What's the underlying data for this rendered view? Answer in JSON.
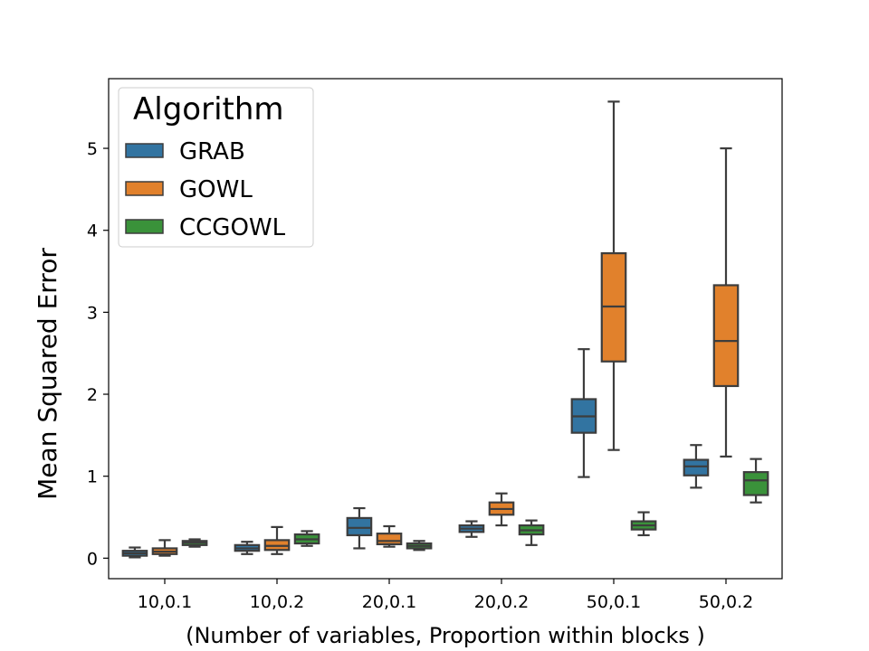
{
  "chart_data": {
    "type": "box",
    "xlabel": "(Number of variables, Proportion within blocks )",
    "ylabel": "Mean Squared Error",
    "ylim": [
      -0.25,
      5.85
    ],
    "yticks": [
      0,
      1,
      2,
      3,
      4,
      5
    ],
    "grid": false,
    "legend": {
      "title": "Algorithm",
      "placement": "top-left"
    },
    "categories": [
      "10,0.1",
      "10,0.2",
      "20,0.1",
      "20,0.2",
      "50,0.1",
      "50,0.2"
    ],
    "series": [
      {
        "name": "GRAB",
        "color": "#3274a1",
        "boxes": [
          {
            "whislo": 0.01,
            "q1": 0.03,
            "med": 0.06,
            "q3": 0.09,
            "whishi": 0.13
          },
          {
            "whislo": 0.05,
            "q1": 0.09,
            "med": 0.12,
            "q3": 0.16,
            "whishi": 0.2
          },
          {
            "whislo": 0.12,
            "q1": 0.28,
            "med": 0.37,
            "q3": 0.49,
            "whishi": 0.61
          },
          {
            "whislo": 0.26,
            "q1": 0.32,
            "med": 0.36,
            "q3": 0.4,
            "whishi": 0.45
          },
          {
            "whislo": 0.99,
            "q1": 1.53,
            "med": 1.73,
            "q3": 1.94,
            "whishi": 2.55
          },
          {
            "whislo": 0.86,
            "q1": 1.01,
            "med": 1.12,
            "q3": 1.2,
            "whishi": 1.38
          }
        ]
      },
      {
        "name": "GOWL",
        "color": "#e1812c",
        "boxes": [
          {
            "whislo": 0.03,
            "q1": 0.05,
            "med": 0.08,
            "q3": 0.12,
            "whishi": 0.22
          },
          {
            "whislo": 0.05,
            "q1": 0.1,
            "med": 0.15,
            "q3": 0.22,
            "whishi": 0.38
          },
          {
            "whislo": 0.14,
            "q1": 0.17,
            "med": 0.21,
            "q3": 0.3,
            "whishi": 0.39
          },
          {
            "whislo": 0.4,
            "q1": 0.53,
            "med": 0.6,
            "q3": 0.68,
            "whishi": 0.79
          },
          {
            "whislo": 1.32,
            "q1": 2.4,
            "med": 3.07,
            "q3": 3.72,
            "whishi": 5.57
          },
          {
            "whislo": 1.24,
            "q1": 2.1,
            "med": 2.65,
            "q3": 3.33,
            "whishi": 5.0
          }
        ]
      },
      {
        "name": "CCGOWL",
        "color": "#3a923a",
        "boxes": [
          {
            "whislo": 0.14,
            "q1": 0.16,
            "med": 0.19,
            "q3": 0.21,
            "whishi": 0.23
          },
          {
            "whislo": 0.15,
            "q1": 0.18,
            "med": 0.23,
            "q3": 0.29,
            "whishi": 0.33
          },
          {
            "whislo": 0.1,
            "q1": 0.12,
            "med": 0.15,
            "q3": 0.18,
            "whishi": 0.21
          },
          {
            "whislo": 0.16,
            "q1": 0.29,
            "med": 0.34,
            "q3": 0.4,
            "whishi": 0.46
          },
          {
            "whislo": 0.28,
            "q1": 0.35,
            "med": 0.4,
            "q3": 0.45,
            "whishi": 0.56
          },
          {
            "whislo": 0.68,
            "q1": 0.77,
            "med": 0.95,
            "q3": 1.05,
            "whishi": 1.21
          }
        ]
      }
    ]
  }
}
